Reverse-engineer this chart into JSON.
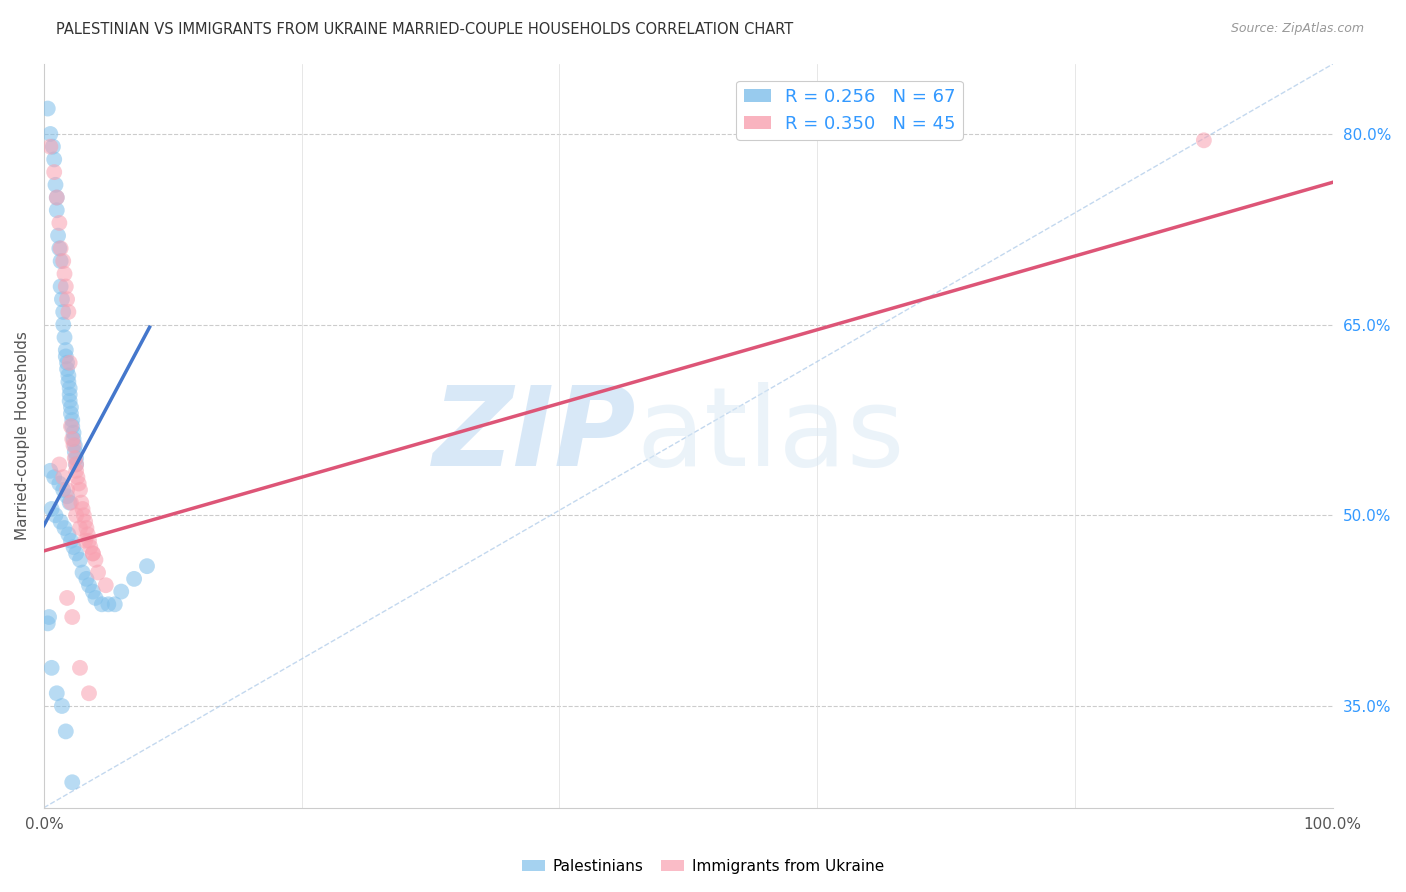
{
  "title": "PALESTINIAN VS IMMIGRANTS FROM UKRAINE MARRIED-COUPLE HOUSEHOLDS CORRELATION CHART",
  "source": "Source: ZipAtlas.com",
  "ylabel": "Married-couple Households",
  "xlim": [
    0,
    1.0
  ],
  "ylim": [
    0.27,
    0.855
  ],
  "yticks_right": [
    0.35,
    0.5,
    0.65,
    0.8
  ],
  "ytick_right_labels": [
    "35.0%",
    "50.0%",
    "65.0%",
    "80.0%"
  ],
  "blue_color": "#7fbfea",
  "pink_color": "#f8a0b0",
  "blue_line_color": "#4477cc",
  "pink_line_color": "#dd5577",
  "blue_line_x": [
    0.0,
    0.082
  ],
  "blue_line_y": [
    0.492,
    0.648
  ],
  "pink_line_x": [
    0.0,
    1.0
  ],
  "pink_line_y": [
    0.472,
    0.762
  ],
  "diag_line_x": [
    0.0,
    1.0
  ],
  "diag_line_y": [
    0.27,
    0.855
  ],
  "palestinians_x": [
    0.003,
    0.005,
    0.007,
    0.008,
    0.009,
    0.01,
    0.01,
    0.011,
    0.012,
    0.013,
    0.013,
    0.014,
    0.015,
    0.015,
    0.016,
    0.017,
    0.017,
    0.018,
    0.018,
    0.019,
    0.019,
    0.02,
    0.02,
    0.02,
    0.021,
    0.021,
    0.022,
    0.022,
    0.023,
    0.023,
    0.024,
    0.024,
    0.025,
    0.025,
    0.005,
    0.008,
    0.012,
    0.015,
    0.018,
    0.02,
    0.006,
    0.009,
    0.013,
    0.016,
    0.019,
    0.021,
    0.023,
    0.025,
    0.028,
    0.03,
    0.033,
    0.035,
    0.038,
    0.04,
    0.045,
    0.05,
    0.055,
    0.06,
    0.07,
    0.08,
    0.003,
    0.004,
    0.006,
    0.01,
    0.014,
    0.017,
    0.022
  ],
  "palestinians_y": [
    0.82,
    0.8,
    0.79,
    0.78,
    0.76,
    0.75,
    0.74,
    0.72,
    0.71,
    0.7,
    0.68,
    0.67,
    0.66,
    0.65,
    0.64,
    0.63,
    0.625,
    0.62,
    0.615,
    0.61,
    0.605,
    0.6,
    0.595,
    0.59,
    0.585,
    0.58,
    0.575,
    0.57,
    0.565,
    0.56,
    0.555,
    0.55,
    0.545,
    0.54,
    0.535,
    0.53,
    0.525,
    0.52,
    0.515,
    0.51,
    0.505,
    0.5,
    0.495,
    0.49,
    0.485,
    0.48,
    0.475,
    0.47,
    0.465,
    0.455,
    0.45,
    0.445,
    0.44,
    0.435,
    0.43,
    0.43,
    0.43,
    0.44,
    0.45,
    0.46,
    0.415,
    0.42,
    0.38,
    0.36,
    0.35,
    0.33,
    0.29
  ],
  "ukraine_x": [
    0.005,
    0.008,
    0.01,
    0.012,
    0.013,
    0.015,
    0.016,
    0.017,
    0.018,
    0.019,
    0.02,
    0.021,
    0.022,
    0.023,
    0.024,
    0.025,
    0.025,
    0.026,
    0.027,
    0.028,
    0.029,
    0.03,
    0.031,
    0.032,
    0.033,
    0.034,
    0.035,
    0.036,
    0.038,
    0.04,
    0.012,
    0.015,
    0.018,
    0.021,
    0.025,
    0.028,
    0.032,
    0.038,
    0.042,
    0.048,
    0.018,
    0.022,
    0.028,
    0.035,
    0.9
  ],
  "ukraine_y": [
    0.79,
    0.77,
    0.75,
    0.73,
    0.71,
    0.7,
    0.69,
    0.68,
    0.67,
    0.66,
    0.62,
    0.57,
    0.56,
    0.555,
    0.545,
    0.54,
    0.535,
    0.53,
    0.525,
    0.52,
    0.51,
    0.505,
    0.5,
    0.495,
    0.49,
    0.485,
    0.48,
    0.475,
    0.47,
    0.465,
    0.54,
    0.53,
    0.52,
    0.51,
    0.5,
    0.49,
    0.48,
    0.47,
    0.455,
    0.445,
    0.435,
    0.42,
    0.38,
    0.36,
    0.795
  ]
}
